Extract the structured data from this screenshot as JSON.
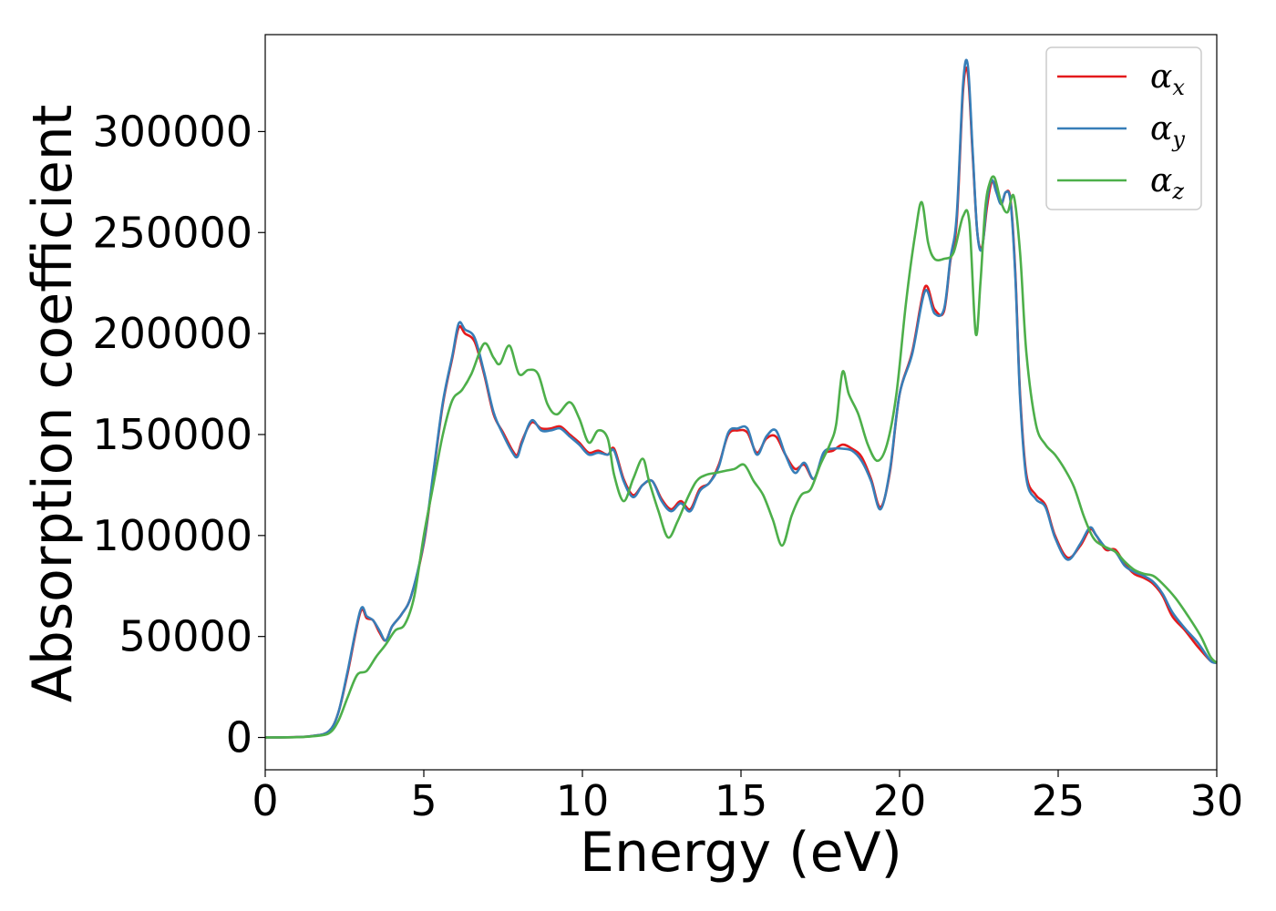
{
  "chart_data": {
    "type": "line",
    "title": "",
    "xlabel": "Energy (eV)",
    "ylabel": "Absorption coefficient",
    "xlim": [
      0,
      30
    ],
    "ylim": [
      -16000,
      348000
    ],
    "xticks": [
      "0",
      "5",
      "10",
      "15",
      "20",
      "25",
      "30"
    ],
    "yticks": [
      "0",
      "50000",
      "100000",
      "150000",
      "200000",
      "250000",
      "300000"
    ],
    "grid": false,
    "legend_position": "top-right",
    "series": [
      {
        "name_symbol": "α",
        "name_sub": "x",
        "color": "#e41a1c",
        "x": [
          0,
          1,
          1.5,
          2,
          2.3,
          2.6,
          3,
          3.2,
          3.4,
          3.6,
          3.8,
          4,
          4.3,
          4.6,
          5,
          5.3,
          5.6,
          5.9,
          6.1,
          6.3,
          6.6,
          6.9,
          7.2,
          7.5,
          7.8,
          7.95,
          8.1,
          8.4,
          8.7,
          9,
          9.3,
          9.6,
          9.9,
          10.2,
          10.5,
          10.8,
          11,
          11.3,
          11.6,
          11.9,
          12.2,
          12.5,
          12.8,
          13.1,
          13.4,
          13.7,
          14,
          14.3,
          14.6,
          14.9,
          15.2,
          15.5,
          15.8,
          16.1,
          16.4,
          16.7,
          17,
          17.3,
          17.6,
          17.9,
          18.2,
          18.5,
          18.8,
          19.1,
          19.4,
          19.7,
          20,
          20.4,
          20.8,
          21.1,
          21.4,
          21.6,
          21.8,
          22,
          22.15,
          22.3,
          22.45,
          22.6,
          22.75,
          22.9,
          23.05,
          23.2,
          23.35,
          23.5,
          23.65,
          23.8,
          24,
          24.3,
          24.6,
          24.9,
          25.3,
          25.7,
          26,
          26.2,
          26.5,
          26.8,
          27.1,
          27.4,
          27.7,
          28,
          28.3,
          28.6,
          29,
          29.4,
          29.8,
          30
        ],
        "y": [
          0,
          200,
          800,
          3000,
          12000,
          32000,
          62000,
          59000,
          58000,
          52000,
          48000,
          55000,
          61000,
          70000,
          96000,
          130000,
          165000,
          188000,
          203000,
          200000,
          196000,
          180000,
          160000,
          151000,
          142000,
          140000,
          147000,
          156000,
          153000,
          153000,
          154000,
          150000,
          146000,
          141000,
          142000,
          140000,
          143000,
          128000,
          120000,
          125000,
          127000,
          118000,
          113000,
          117000,
          113000,
          123000,
          126000,
          135000,
          150000,
          152000,
          151000,
          141000,
          148000,
          149000,
          140000,
          133000,
          135000,
          128000,
          140000,
          142000,
          145000,
          143000,
          139000,
          128000,
          114000,
          132000,
          170000,
          191000,
          223000,
          212000,
          211000,
          236000,
          255000,
          320000,
          329000,
          290000,
          250000,
          243000,
          262000,
          275000,
          272000,
          264000,
          270000,
          266000,
          230000,
          170000,
          130000,
          120000,
          115000,
          100000,
          89000,
          95000,
          103000,
          100000,
          93000,
          93000,
          86000,
          81000,
          79000,
          76000,
          70000,
          60000,
          53000,
          45000,
          38000,
          37000
        ]
      },
      {
        "name_symbol": "α",
        "name_sub": "y",
        "color": "#377eb8",
        "x": [
          0,
          1,
          1.5,
          2,
          2.3,
          2.6,
          3,
          3.2,
          3.4,
          3.6,
          3.8,
          4,
          4.3,
          4.6,
          5,
          5.3,
          5.6,
          5.9,
          6.1,
          6.3,
          6.6,
          6.9,
          7.2,
          7.5,
          7.8,
          7.95,
          8.1,
          8.4,
          8.7,
          9,
          9.3,
          9.6,
          9.9,
          10.2,
          10.5,
          10.8,
          11,
          11.3,
          11.6,
          11.9,
          12.2,
          12.5,
          12.8,
          13.1,
          13.4,
          13.7,
          14,
          14.3,
          14.6,
          14.9,
          15.2,
          15.5,
          15.8,
          16.1,
          16.4,
          16.7,
          17,
          17.3,
          17.6,
          17.9,
          18.2,
          18.5,
          18.8,
          19.1,
          19.4,
          19.7,
          20,
          20.4,
          20.8,
          21.1,
          21.4,
          21.6,
          21.8,
          22,
          22.15,
          22.3,
          22.45,
          22.6,
          22.75,
          22.9,
          23.05,
          23.2,
          23.35,
          23.5,
          23.65,
          23.8,
          24,
          24.3,
          24.6,
          24.9,
          25.3,
          25.7,
          26,
          26.2,
          26.5,
          26.8,
          27.1,
          27.4,
          27.7,
          28,
          28.3,
          28.6,
          29,
          29.4,
          29.8,
          30
        ],
        "y": [
          0,
          200,
          800,
          3000,
          12000,
          33000,
          63000,
          60000,
          58000,
          53000,
          48000,
          55000,
          61000,
          70000,
          97000,
          131000,
          166000,
          189000,
          205000,
          202000,
          198000,
          181000,
          161000,
          150000,
          141000,
          139000,
          146000,
          157000,
          152000,
          152000,
          153000,
          149000,
          145000,
          140000,
          141000,
          140000,
          142000,
          127000,
          119000,
          125000,
          127000,
          117000,
          112000,
          116000,
          112000,
          122000,
          126000,
          134000,
          151000,
          153000,
          153000,
          140000,
          149000,
          152000,
          140000,
          131000,
          136000,
          128000,
          141000,
          143000,
          143000,
          142000,
          137000,
          127000,
          113000,
          133000,
          170000,
          190000,
          221000,
          210000,
          212000,
          237000,
          258000,
          323000,
          333000,
          292000,
          250000,
          242000,
          265000,
          276000,
          270000,
          264000,
          270000,
          265000,
          228000,
          168000,
          128000,
          118000,
          114000,
          99000,
          88000,
          96000,
          104000,
          100000,
          94000,
          92000,
          85000,
          82000,
          80000,
          77000,
          71000,
          62000,
          54000,
          47000,
          38000,
          37000
        ]
      },
      {
        "name_symbol": "α",
        "name_sub": "z",
        "color": "#4daf4a",
        "x": [
          0,
          1,
          1.5,
          2,
          2.3,
          2.6,
          2.9,
          3.2,
          3.5,
          3.8,
          4.1,
          4.4,
          4.7,
          5,
          5.3,
          5.6,
          5.9,
          6.2,
          6.5,
          6.9,
          7.2,
          7.4,
          7.7,
          8,
          8.3,
          8.6,
          8.9,
          9.2,
          9.6,
          9.9,
          10.2,
          10.5,
          10.8,
          11,
          11.3,
          11.6,
          11.9,
          12.1,
          12.4,
          12.7,
          13,
          13.3,
          13.6,
          13.9,
          14.2,
          14.5,
          14.8,
          15.1,
          15.4,
          15.7,
          16,
          16.3,
          16.6,
          16.9,
          17.2,
          17.5,
          17.8,
          18,
          18.2,
          18.4,
          18.7,
          19,
          19.3,
          19.6,
          19.9,
          20.2,
          20.5,
          20.7,
          20.9,
          21.1,
          21.4,
          21.7,
          22,
          22.2,
          22.4,
          22.55,
          22.7,
          22.85,
          23,
          23.2,
          23.4,
          23.6,
          23.8,
          24,
          24.3,
          24.6,
          24.9,
          25.2,
          25.5,
          25.8,
          26.1,
          26.4,
          26.8,
          27.1,
          27.4,
          27.7,
          28,
          28.3,
          28.7,
          29.1,
          29.5,
          29.8,
          30
        ],
        "y": [
          0,
          150,
          600,
          2000,
          8000,
          20000,
          31000,
          33000,
          40000,
          46000,
          53000,
          56000,
          70000,
          100000,
          125000,
          150000,
          167000,
          172000,
          180000,
          195000,
          188000,
          185000,
          194000,
          180000,
          182000,
          180000,
          165000,
          160000,
          166000,
          158000,
          146000,
          152000,
          148000,
          130000,
          117000,
          128000,
          138000,
          127000,
          112000,
          99000,
          107000,
          118000,
          127000,
          130000,
          131000,
          132000,
          133000,
          135000,
          127000,
          120000,
          108000,
          95000,
          110000,
          120000,
          123000,
          135000,
          145000,
          155000,
          181000,
          170000,
          160000,
          145000,
          137000,
          145000,
          170000,
          215000,
          250000,
          265000,
          245000,
          237000,
          237000,
          240000,
          258000,
          255000,
          200000,
          225000,
          262000,
          275000,
          277000,
          265000,
          260000,
          268000,
          240000,
          190000,
          155000,
          145000,
          140000,
          133000,
          124000,
          110000,
          99000,
          95000,
          92000,
          87000,
          83000,
          81000,
          80000,
          76000,
          69000,
          60000,
          50000,
          40000,
          37000
        ]
      }
    ]
  }
}
